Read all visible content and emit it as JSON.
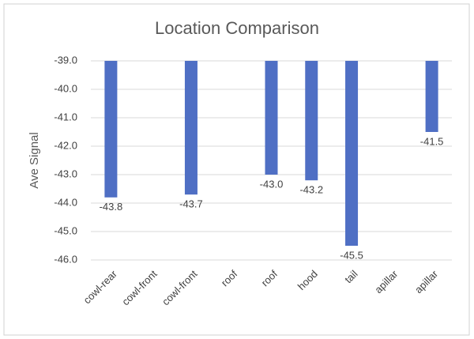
{
  "chart_data": {
    "type": "bar",
    "title": "Location Comparison",
    "y_label": "Ave Signal",
    "categories": [
      "cowl-rear",
      "cowl-front",
      "cowl-front",
      "roof",
      "roof",
      "hood",
      "tail",
      "apillar",
      "apillar"
    ],
    "values": [
      -43.8,
      null,
      -43.7,
      null,
      -43.0,
      -43.2,
      -45.5,
      null,
      -41.5
    ],
    "value_labels": [
      "-43.8",
      null,
      "-43.7",
      null,
      "-43.0",
      "-43.2",
      "-45.5",
      null,
      "-41.5"
    ],
    "color": "#4f6fc4",
    "ylim": [
      -46,
      -39
    ],
    "yticks": [
      {
        "value": -46,
        "label": "-46.0"
      },
      {
        "value": -45,
        "label": "-45.0"
      },
      {
        "value": -44,
        "label": "-44.0"
      },
      {
        "value": -43,
        "label": "-43.0"
      },
      {
        "value": -42,
        "label": "-42.0"
      },
      {
        "value": -41,
        "label": "-41.0"
      },
      {
        "value": -40,
        "label": "-40.0"
      },
      {
        "value": -39,
        "label": "-39.0"
      }
    ],
    "grid": true
  }
}
